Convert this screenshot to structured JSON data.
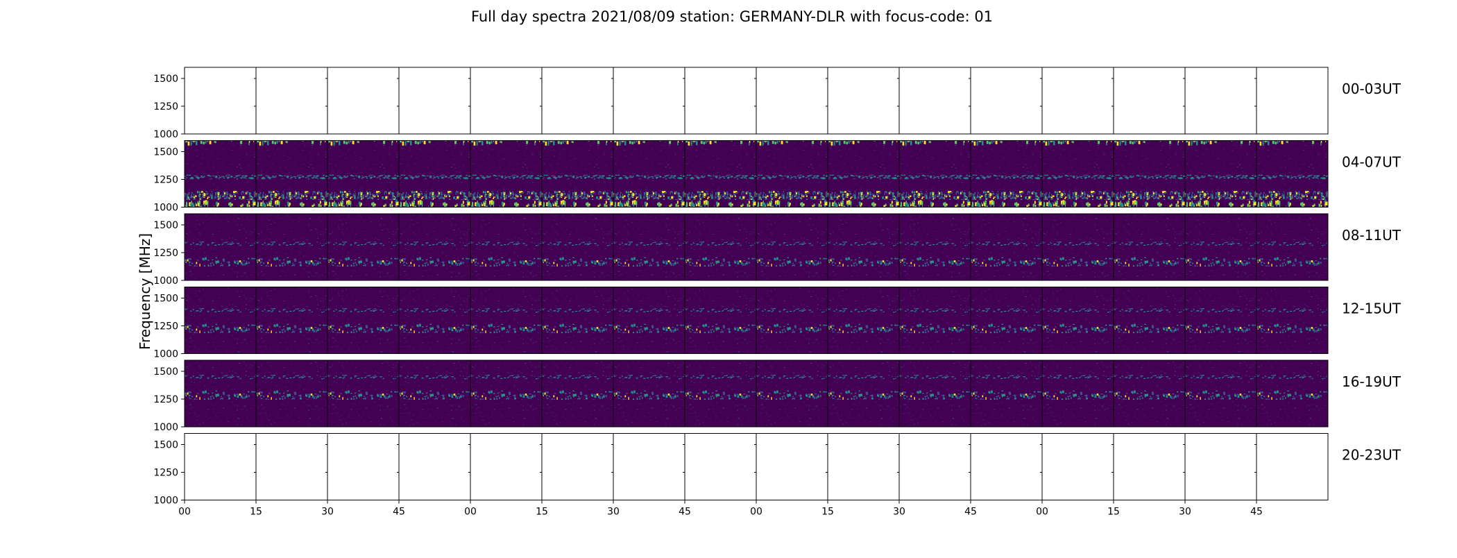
{
  "chart_data": {
    "type": "heatmap",
    "title": "Full day spectra 2021/08/09 station: GERMANY-DLR with focus-code: 01",
    "ylabel": "Frequency [MHz]",
    "xlabel": "",
    "ylim": [
      1000,
      1600
    ],
    "yticks": [
      1000,
      1250,
      1500
    ],
    "xticks": [
      "00",
      "15",
      "30",
      "45",
      "00",
      "15",
      "30",
      "45",
      "00",
      "15",
      "30",
      "45",
      "00",
      "15",
      "30",
      "45"
    ],
    "rows": [
      {
        "label": "00-03UT",
        "has_data": false
      },
      {
        "label": "04-07UT",
        "has_data": true
      },
      {
        "label": "08-11UT",
        "has_data": true
      },
      {
        "label": "12-15UT",
        "has_data": true
      },
      {
        "label": "16-19UT",
        "has_data": true
      },
      {
        "label": "20-23UT",
        "has_data": false
      }
    ],
    "panels_per_row": 16,
    "colormap": {
      "low": "#440154",
      "mid": "#3b528b",
      "high": "#21918c",
      "peak": "#fde725"
    }
  }
}
